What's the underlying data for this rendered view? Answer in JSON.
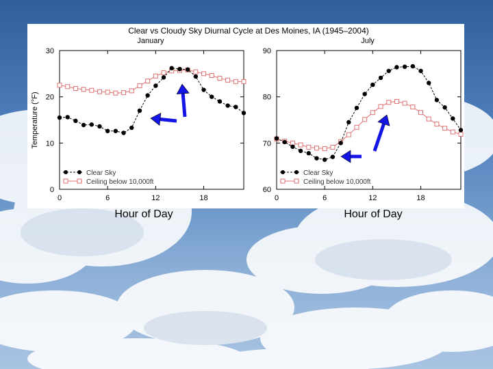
{
  "slide": {
    "background_colors": [
      "#2f5f9c",
      "#a9c3e2"
    ],
    "bottom_labels": [
      "Hour of Day",
      "Hour of Day"
    ]
  },
  "figure": {
    "title": "Clear vs Cloudy Sky Diurnal Cycle at Des Moines, IA  (1945–2004)"
  },
  "chart_data": [
    {
      "type": "line",
      "subtitle": "January",
      "xlabel": "",
      "ylabel": "Temperature (°F)",
      "xlim": [
        0,
        23
      ],
      "ylim": [
        0,
        30
      ],
      "x_ticks": [
        0,
        6,
        12,
        18
      ],
      "y_ticks": [
        0,
        10,
        20,
        30
      ],
      "grid": false,
      "legend_position": "bottom-left",
      "x": [
        0,
        1,
        2,
        3,
        4,
        5,
        6,
        7,
        8,
        9,
        10,
        11,
        12,
        13,
        14,
        15,
        16,
        17,
        18,
        19,
        20,
        21,
        22,
        23
      ],
      "series": [
        {
          "name": "Clear Sky",
          "color": "#000000",
          "marker": "filled-circle",
          "values": [
            15.5,
            15.6,
            14.8,
            13.9,
            14.0,
            13.6,
            12.6,
            12.6,
            12.2,
            13.3,
            17.0,
            20.3,
            22.4,
            24.2,
            26.2,
            26.0,
            25.9,
            24.4,
            21.5,
            20.0,
            19.0,
            18.1,
            17.8,
            16.5
          ]
        },
        {
          "name": "Ceiling below 10,000ft",
          "color": "#e07070",
          "marker": "open-square",
          "values": [
            22.5,
            22.2,
            21.8,
            21.6,
            21.4,
            21.1,
            21.0,
            20.8,
            20.9,
            21.3,
            22.4,
            23.4,
            24.5,
            25.2,
            25.6,
            25.7,
            25.8,
            25.4,
            25.0,
            24.6,
            24.0,
            23.6,
            23.3,
            23.3
          ]
        }
      ],
      "annotations": [
        "blue arrow toward clear-sky morning values",
        "blue arrow toward afternoon peak"
      ]
    },
    {
      "type": "line",
      "subtitle": "July",
      "xlabel": "",
      "ylabel": "",
      "xlim": [
        0,
        23
      ],
      "ylim": [
        60,
        90
      ],
      "x_ticks": [
        0,
        6,
        12,
        18
      ],
      "y_ticks": [
        60,
        70,
        80,
        90
      ],
      "grid": false,
      "legend_position": "bottom-left",
      "x": [
        0,
        1,
        2,
        3,
        4,
        5,
        6,
        7,
        8,
        9,
        10,
        11,
        12,
        13,
        14,
        15,
        16,
        17,
        18,
        19,
        20,
        21,
        22,
        23
      ],
      "series": [
        {
          "name": "Clear Sky",
          "color": "#000000",
          "marker": "filled-circle",
          "values": [
            71.0,
            70.2,
            69.2,
            68.3,
            67.8,
            66.7,
            66.4,
            67.0,
            70.0,
            74.5,
            77.6,
            80.6,
            82.6,
            84.1,
            85.6,
            86.4,
            86.5,
            86.6,
            85.6,
            83.0,
            79.3,
            77.7,
            75.3,
            72.8
          ]
        },
        {
          "name": "Ceiling below 10,000ft",
          "color": "#e07070",
          "marker": "open-square",
          "values": [
            70.9,
            70.4,
            70.0,
            69.6,
            69.1,
            68.9,
            68.8,
            69.1,
            70.3,
            71.8,
            73.4,
            75.1,
            76.6,
            77.9,
            78.8,
            79.0,
            78.6,
            77.8,
            76.6,
            75.2,
            74.1,
            73.2,
            72.4,
            71.9
          ]
        }
      ],
      "annotations": [
        "blue arrow toward early-morning values",
        "blue arrow toward afternoon cloudy peak"
      ]
    }
  ]
}
